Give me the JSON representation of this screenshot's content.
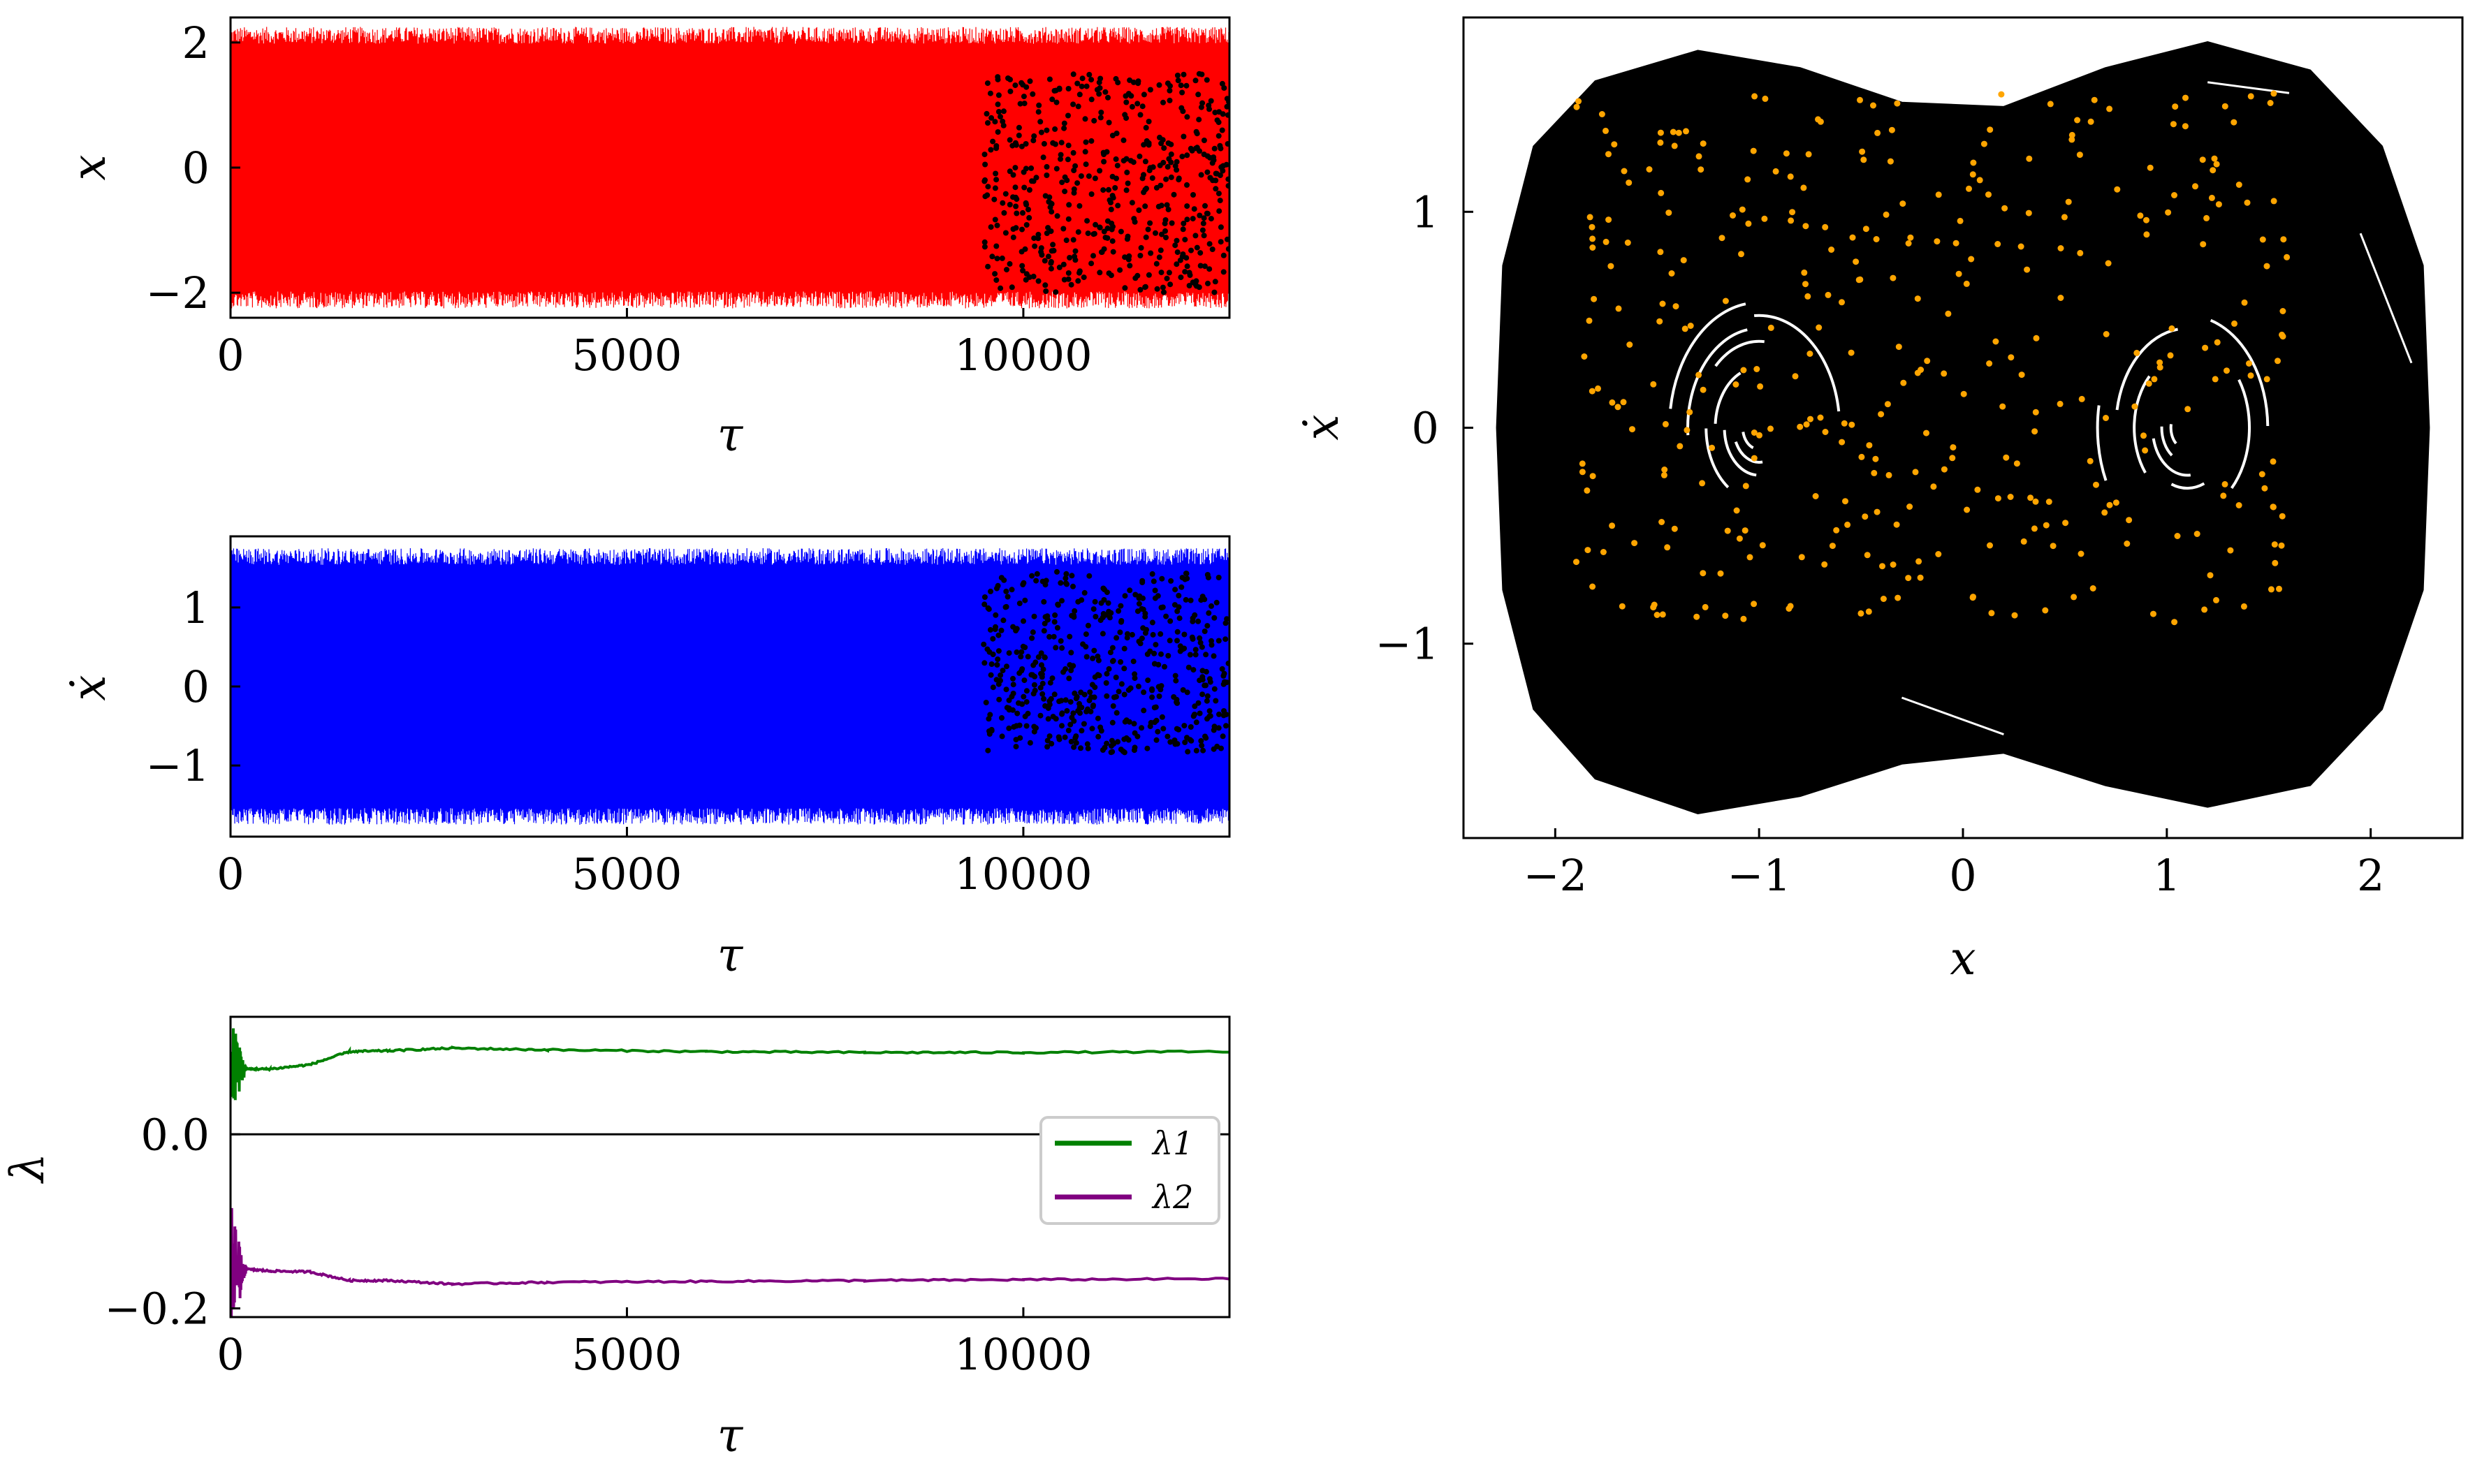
{
  "chart_data": [
    {
      "id": "x_series",
      "type": "line",
      "xlabel": "τ",
      "ylabel": "x",
      "xlim": [
        0,
        12600
      ],
      "ylim": [
        -2.4,
        2.4
      ],
      "xticks": [
        0,
        5000,
        10000
      ],
      "xtick_labels": [
        "0",
        "5000",
        "10000"
      ],
      "yticks": [
        -2,
        0,
        2
      ],
      "ytick_labels": [
        "−2",
        "0",
        "2"
      ],
      "color": "#ff0000",
      "envelope": {
        "min": -2.25,
        "max": 2.25
      },
      "overlay_points": {
        "color": "#000000",
        "x_range": [
          9500,
          12600
        ],
        "y_range": [
          -2.0,
          1.5
        ],
        "count": 520
      }
    },
    {
      "id": "xdot_series",
      "type": "line",
      "xlabel": "τ",
      "ylabel": "ẋ",
      "xlim": [
        0,
        12600
      ],
      "ylim": [
        -1.9,
        1.9
      ],
      "xticks": [
        0,
        5000,
        10000
      ],
      "xtick_labels": [
        "0",
        "5000",
        "10000"
      ],
      "yticks": [
        -1,
        0,
        1
      ],
      "ytick_labels": [
        "−1",
        "0",
        "1"
      ],
      "color": "#0000ff",
      "envelope": {
        "min": -1.75,
        "max": 1.75
      },
      "overlay_points": {
        "color": "#000000",
        "x_range": [
          9500,
          12600
        ],
        "y_range": [
          -0.85,
          1.45
        ],
        "count": 520
      }
    },
    {
      "id": "lyapunov",
      "type": "line",
      "xlabel": "τ",
      "ylabel": "λ",
      "xlim": [
        0,
        12600
      ],
      "ylim": [
        -0.21,
        0.135
      ],
      "xticks": [
        0,
        5000,
        10000
      ],
      "xtick_labels": [
        "0",
        "5000",
        "10000"
      ],
      "yticks": [
        -0.2,
        0.0
      ],
      "ytick_labels": [
        "−0.2",
        "0.0"
      ],
      "zero_line": true,
      "legend": "right",
      "series": [
        {
          "name": "λ1",
          "color": "#008000",
          "x": [
            0,
            200,
            500,
            1000,
            1500,
            2000,
            2800,
            4000,
            6000,
            8000,
            10000,
            12600
          ],
          "y": [
            0.02,
            0.075,
            0.075,
            0.08,
            0.095,
            0.096,
            0.099,
            0.097,
            0.095,
            0.094,
            0.094,
            0.095
          ]
        },
        {
          "name": "λ2",
          "color": "#800080",
          "x": [
            0,
            200,
            500,
            1000,
            1500,
            2000,
            2800,
            4000,
            6000,
            8000,
            10000,
            12600
          ],
          "y": [
            -0.1,
            -0.155,
            -0.157,
            -0.158,
            -0.168,
            -0.168,
            -0.172,
            -0.17,
            -0.169,
            -0.168,
            -0.167,
            -0.166
          ]
        }
      ]
    },
    {
      "id": "phase_portrait",
      "type": "scatter",
      "xlabel": "x",
      "ylabel": "ẋ",
      "xlim": [
        -2.45,
        2.45
      ],
      "ylim": [
        -1.9,
        1.9
      ],
      "xticks": [
        -2,
        -1,
        0,
        1,
        2
      ],
      "xtick_labels": [
        "−2",
        "−1",
        "0",
        "1",
        "2"
      ],
      "yticks": [
        -1,
        0,
        1
      ],
      "ytick_labels": [
        "−1",
        "0",
        "1"
      ],
      "trajectory_color": "#000000",
      "section_points": {
        "color": "#ffa500",
        "count": 360,
        "x_range": [
          -1.9,
          1.6
        ],
        "y_range": [
          -0.9,
          1.55
        ]
      }
    }
  ]
}
